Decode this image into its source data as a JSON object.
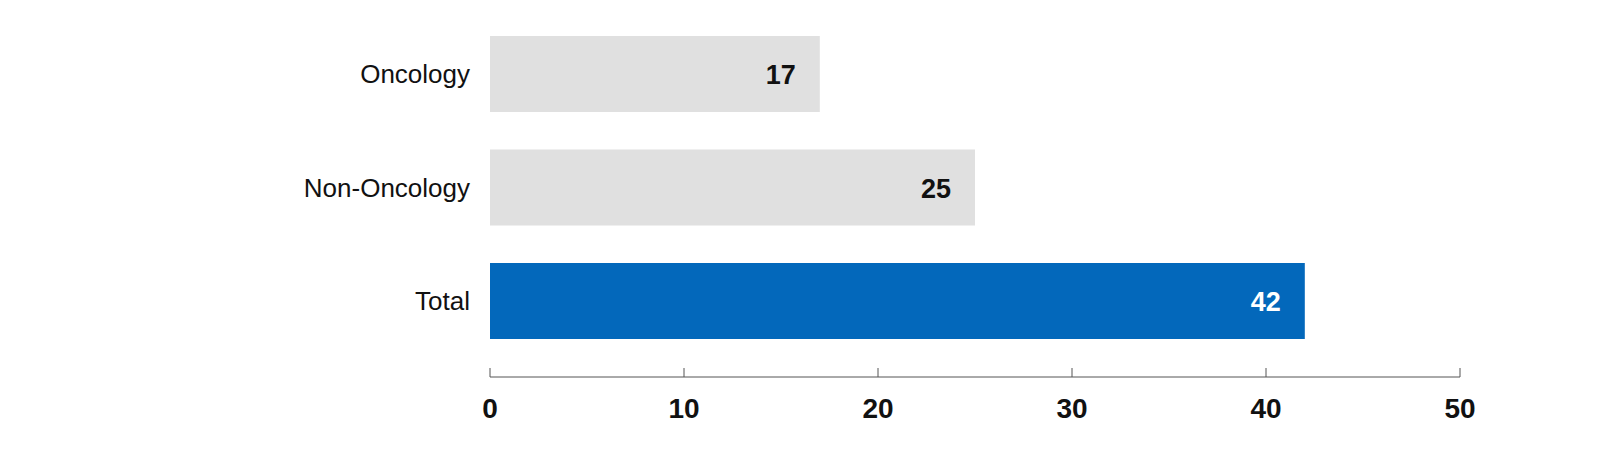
{
  "chart_data": {
    "type": "bar",
    "orientation": "horizontal",
    "categories": [
      "Oncology",
      "Non-Oncology",
      "Total"
    ],
    "values": [
      17,
      25,
      42
    ],
    "colors": [
      "#e0e0e0",
      "#e0e0e0",
      "#0368bb"
    ],
    "xlim": [
      0,
      50
    ],
    "xticks": [
      0,
      10,
      20,
      30,
      40,
      50
    ],
    "grid": false,
    "data_labels": true
  }
}
